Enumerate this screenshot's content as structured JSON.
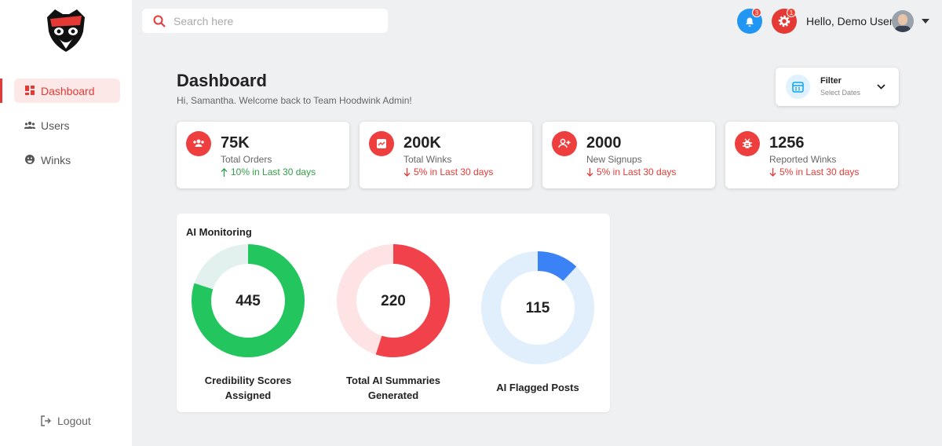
{
  "sidebar": {
    "nav": [
      {
        "label": "Dashboard",
        "active": true
      },
      {
        "label": "Users",
        "active": false
      },
      {
        "label": "Winks",
        "active": false
      }
    ],
    "logout": "Logout"
  },
  "topbar": {
    "search_placeholder": "Search here",
    "notifications": 3,
    "settings": 1,
    "greeting": "Hello, Demo User"
  },
  "header": {
    "title": "Dashboard",
    "subtitle": "Hi, Samantha. Welcome back to Team Hoodwink Admin!"
  },
  "filter": {
    "label": "Filter",
    "hint": "Select Dates"
  },
  "stats": [
    {
      "value": "75K",
      "label": "Total Orders",
      "change": "10% in Last 30 days",
      "trend": "up"
    },
    {
      "value": "200K",
      "label": "Total Winks",
      "change": "5% in Last 30 days",
      "trend": "down"
    },
    {
      "value": "2000",
      "label": "New Signups",
      "change": "5% in Last 30 days",
      "trend": "down"
    },
    {
      "value": "1256",
      "label": "Reported Winks",
      "change": "5% in Last 30 days",
      "trend": "down"
    }
  ],
  "ai_monitoring": {
    "title": "AI Monitoring",
    "donuts": [
      {
        "value": 445,
        "label": "Credibility Scores Assigned",
        "fill_percent": 80,
        "color": "#22c55e",
        "track": "#e3f1ee"
      },
      {
        "value": 220,
        "label": "Total AI Summaries Generated",
        "fill_percent": 55,
        "color": "#f1414a",
        "track": "#fde3e3"
      },
      {
        "value": 115,
        "label": "AI Flagged Posts",
        "fill_percent": 12,
        "color": "#3b82f6",
        "track": "#e1effc"
      }
    ]
  }
}
